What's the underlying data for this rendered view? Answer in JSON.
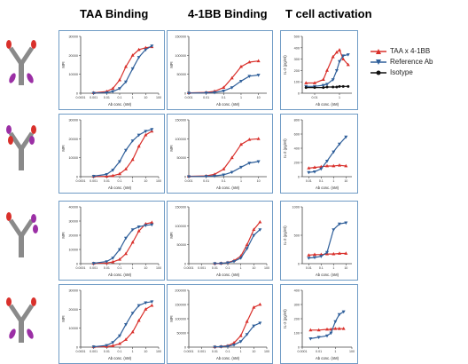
{
  "column_headers": [
    "TAA Binding",
    "4-1BB Binding",
    "T  cell activation"
  ],
  "legend": [
    {
      "label": "TAA x 4-1BB",
      "color": "#d9302b",
      "marker": "triangle-up"
    },
    {
      "label": "Reference Ab",
      "color": "#2f5f9a",
      "marker": "triangle-down"
    },
    {
      "label": "Isotype",
      "color": "#111111",
      "marker": "circle"
    }
  ],
  "colors": {
    "taa": "#d9302b",
    "ref": "#2f5f9a",
    "iso": "#111111",
    "panel_border": "#6f9bc5",
    "heavy_chain": "#8a8a8a",
    "taa_arm": "#d9302b",
    "bb_arm": "#9b2fa5"
  },
  "chart_data": [
    {
      "type": "line",
      "row": 1,
      "col": 1,
      "xlabel": "Ab conc. (nM)",
      "ylabel": "MFI",
      "xscale": "log",
      "xlim": [
        0.0001,
        100
      ],
      "xticks": [
        "0.0001",
        "0.001",
        "0.01",
        "0.1",
        "1",
        "10",
        "100"
      ],
      "ylim": [
        0,
        30000
      ],
      "yticks": [
        "0",
        "10000",
        "20000",
        "30000"
      ],
      "series": [
        {
          "key": "taa",
          "x": [
            0.001,
            0.01,
            0.03,
            0.1,
            0.3,
            1,
            3,
            10,
            30
          ],
          "y": [
            200,
            900,
            2500,
            7000,
            14000,
            20000,
            23000,
            24000,
            24500
          ]
        },
        {
          "key": "ref",
          "x": [
            0.001,
            0.01,
            0.03,
            0.1,
            0.3,
            1,
            3,
            10,
            30
          ],
          "y": [
            100,
            300,
            900,
            2500,
            6000,
            13000,
            19000,
            23000,
            25000
          ]
        }
      ]
    },
    {
      "type": "line",
      "row": 1,
      "col": 2,
      "xlabel": "Ab conc. (nM)",
      "ylabel": "MFI",
      "xscale": "log",
      "xlim": [
        0.001,
        30
      ],
      "xticks": [
        "0.001",
        "0.01",
        "0.1",
        "1",
        "10"
      ],
      "ylim": [
        0,
        150000
      ],
      "yticks": [
        "0",
        "50000",
        "100000",
        "150000"
      ],
      "series": [
        {
          "key": "taa",
          "x": [
            0.001,
            0.01,
            0.03,
            0.1,
            0.3,
            1,
            3,
            10
          ],
          "y": [
            1000,
            2000,
            5000,
            15000,
            40000,
            70000,
            82000,
            85000
          ]
        },
        {
          "key": "ref",
          "x": [
            0.001,
            0.01,
            0.03,
            0.1,
            0.3,
            1,
            3,
            10
          ],
          "y": [
            500,
            1000,
            2000,
            6000,
            15000,
            32000,
            45000,
            48000
          ]
        }
      ]
    },
    {
      "type": "line",
      "row": 1,
      "col": 3,
      "xlabel": "Ab conc. (nM)",
      "ylabel": "IL-2 (pg/ml)",
      "xscale": "log",
      "xlim": [
        0.001,
        10
      ],
      "xticks": [
        "0.01",
        "1"
      ],
      "ylim": [
        0,
        500
      ],
      "yticks": [
        "0",
        "100",
        "200",
        "300",
        "400",
        "500"
      ],
      "series": [
        {
          "key": "taa",
          "x": [
            0.002,
            0.01,
            0.05,
            0.1,
            0.3,
            0.6,
            1,
            2,
            5
          ],
          "y": [
            90,
            90,
            120,
            200,
            320,
            360,
            380,
            300,
            250
          ]
        },
        {
          "key": "ref",
          "x": [
            0.002,
            0.01,
            0.05,
            0.1,
            0.3,
            0.6,
            1,
            2,
            5
          ],
          "y": [
            60,
            60,
            70,
            80,
            120,
            200,
            280,
            330,
            340
          ]
        },
        {
          "key": "iso",
          "x": [
            0.002,
            0.01,
            0.05,
            0.1,
            0.3,
            0.6,
            1,
            2,
            5
          ],
          "y": [
            50,
            50,
            50,
            55,
            55,
            55,
            60,
            60,
            60
          ]
        }
      ]
    },
    {
      "type": "line",
      "row": 2,
      "col": 1,
      "xlabel": "Ab conc. (nM)",
      "ylabel": "MFI",
      "xscale": "log",
      "xlim": [
        0.0001,
        100
      ],
      "xticks": [
        "0.0001",
        "0.001",
        "0.01",
        "0.1",
        "1",
        "10",
        "100"
      ],
      "ylim": [
        0,
        30000
      ],
      "yticks": [
        "0",
        "10000",
        "20000",
        "30000"
      ],
      "series": [
        {
          "key": "taa",
          "x": [
            0.001,
            0.01,
            0.03,
            0.1,
            0.3,
            1,
            3,
            10,
            30
          ],
          "y": [
            100,
            200,
            500,
            1500,
            4000,
            9000,
            16000,
            22000,
            24000
          ]
        },
        {
          "key": "ref",
          "x": [
            0.001,
            0.01,
            0.03,
            0.1,
            0.3,
            1,
            3,
            10,
            30
          ],
          "y": [
            300,
            1200,
            3500,
            8000,
            14000,
            19000,
            22000,
            24000,
            25000
          ]
        }
      ]
    },
    {
      "type": "line",
      "row": 2,
      "col": 2,
      "xlabel": "Ab conc. (nM)",
      "ylabel": "MFI",
      "xscale": "log",
      "xlim": [
        0.001,
        30
      ],
      "xticks": [
        "0.001",
        "0.01",
        "0.1",
        "1",
        "10"
      ],
      "ylim": [
        0,
        150000
      ],
      "yticks": [
        "0",
        "50000",
        "100000",
        "150000"
      ],
      "series": [
        {
          "key": "taa",
          "x": [
            0.001,
            0.01,
            0.03,
            0.1,
            0.3,
            1,
            3,
            10
          ],
          "y": [
            1000,
            2000,
            6000,
            20000,
            50000,
            85000,
            98000,
            100000
          ]
        },
        {
          "key": "ref",
          "x": [
            0.001,
            0.01,
            0.03,
            0.1,
            0.3,
            1,
            3,
            10
          ],
          "y": [
            500,
            1000,
            2000,
            5000,
            12000,
            25000,
            36000,
            40000
          ]
        }
      ]
    },
    {
      "type": "line",
      "row": 2,
      "col": 3,
      "xlabel": "Ab conc. (nM)",
      "ylabel": "IL-2 (pg/ml)",
      "xscale": "log",
      "xlim": [
        0.003,
        30
      ],
      "xticks": [
        "0.01",
        "0.1",
        "1",
        "10"
      ],
      "ylim": [
        0,
        800
      ],
      "yticks": [
        "0",
        "200",
        "400",
        "600",
        "800"
      ],
      "series": [
        {
          "key": "taa",
          "x": [
            0.01,
            0.03,
            0.1,
            0.3,
            1,
            3,
            10
          ],
          "y": [
            120,
            130,
            140,
            150,
            150,
            160,
            150
          ]
        },
        {
          "key": "ref",
          "x": [
            0.01,
            0.03,
            0.1,
            0.3,
            1,
            3,
            10
          ],
          "y": [
            60,
            70,
            110,
            220,
            350,
            460,
            560
          ]
        }
      ]
    },
    {
      "type": "line",
      "row": 3,
      "col": 1,
      "xlabel": "Ab conc. (nM)",
      "ylabel": "MFI",
      "xscale": "log",
      "xlim": [
        0.0001,
        100
      ],
      "xticks": [
        "0.0001",
        "0.001",
        "0.01",
        "0.1",
        "1",
        "10",
        "100"
      ],
      "ylim": [
        0,
        40000
      ],
      "yticks": [
        "0",
        "10000",
        "20000",
        "30000",
        "40000"
      ],
      "series": [
        {
          "key": "taa",
          "x": [
            0.001,
            0.01,
            0.03,
            0.1,
            0.3,
            1,
            3,
            10,
            30
          ],
          "y": [
            200,
            500,
            1200,
            3000,
            7000,
            15000,
            23000,
            28000,
            29000
          ]
        },
        {
          "key": "ref",
          "x": [
            0.001,
            0.01,
            0.03,
            0.1,
            0.3,
            1,
            3,
            10,
            30
          ],
          "y": [
            300,
            1500,
            4000,
            10000,
            18000,
            24000,
            26000,
            27000,
            27500
          ]
        }
      ]
    },
    {
      "type": "line",
      "row": 3,
      "col": 2,
      "xlabel": "Ab conc. (nM)",
      "ylabel": "MFI",
      "xscale": "log",
      "xlim": [
        0.0001,
        100
      ],
      "xticks": [
        "0.0001",
        "0.001",
        "0.01",
        "0.1",
        "1",
        "10",
        "100"
      ],
      "ylim": [
        0,
        150000
      ],
      "yticks": [
        "0",
        "50000",
        "100000",
        "150000"
      ],
      "series": [
        {
          "key": "taa",
          "x": [
            0.01,
            0.03,
            0.1,
            0.3,
            1,
            3,
            10,
            30
          ],
          "y": [
            500,
            1000,
            3000,
            8000,
            20000,
            50000,
            90000,
            110000
          ]
        },
        {
          "key": "ref",
          "x": [
            0.01,
            0.03,
            0.1,
            0.3,
            1,
            3,
            10,
            30
          ],
          "y": [
            400,
            800,
            2500,
            6000,
            15000,
            40000,
            75000,
            90000
          ]
        }
      ]
    },
    {
      "type": "line",
      "row": 3,
      "col": 3,
      "xlabel": "Ab conc. (nM)",
      "ylabel": "IL-2 (pg/ml)",
      "xscale": "log",
      "xlim": [
        0.003,
        30
      ],
      "xticks": [
        "0.01",
        "0.1",
        "1",
        "10"
      ],
      "ylim": [
        0,
        1000
      ],
      "yticks": [
        "0",
        "500",
        "1000"
      ],
      "series": [
        {
          "key": "taa",
          "x": [
            0.01,
            0.03,
            0.1,
            0.3,
            1,
            3,
            10
          ],
          "y": [
            150,
            160,
            160,
            170,
            170,
            180,
            180
          ]
        },
        {
          "key": "ref",
          "x": [
            0.01,
            0.03,
            0.1,
            0.3,
            1,
            3,
            10
          ],
          "y": [
            100,
            110,
            130,
            200,
            600,
            700,
            720
          ]
        }
      ]
    },
    {
      "type": "line",
      "row": 4,
      "col": 1,
      "xlabel": "Ab conc. (nM)",
      "ylabel": "MFI",
      "xscale": "log",
      "xlim": [
        0.0001,
        100
      ],
      "xticks": [
        "0.0001",
        "0.001",
        "0.01",
        "0.1",
        "1",
        "10",
        "100"
      ],
      "ylim": [
        0,
        30000
      ],
      "yticks": [
        "0",
        "10000",
        "20000",
        "30000"
      ],
      "series": [
        {
          "key": "taa",
          "x": [
            0.001,
            0.01,
            0.03,
            0.1,
            0.3,
            1,
            3,
            10,
            30
          ],
          "y": [
            100,
            300,
            700,
            1800,
            4000,
            8000,
            14000,
            20000,
            22000
          ]
        },
        {
          "key": "ref",
          "x": [
            0.001,
            0.01,
            0.03,
            0.1,
            0.3,
            1,
            3,
            10,
            30
          ],
          "y": [
            200,
            900,
            2500,
            6000,
            12000,
            18000,
            22000,
            23500,
            24000
          ]
        }
      ]
    },
    {
      "type": "line",
      "row": 4,
      "col": 2,
      "xlabel": "Ab conc. (nM)",
      "ylabel": "MFI",
      "xscale": "log",
      "xlim": [
        0.0001,
        100
      ],
      "xticks": [
        "0.0001",
        "0.001",
        "0.01",
        "0.1",
        "1",
        "10",
        "100"
      ],
      "ylim": [
        0,
        200000
      ],
      "yticks": [
        "0",
        "50000",
        "100000",
        "150000",
        "200000"
      ],
      "series": [
        {
          "key": "taa",
          "x": [
            0.01,
            0.03,
            0.1,
            0.3,
            1,
            3,
            10,
            30
          ],
          "y": [
            1000,
            2000,
            5000,
            15000,
            40000,
            90000,
            140000,
            150000
          ]
        },
        {
          "key": "ref",
          "x": [
            0.01,
            0.03,
            0.1,
            0.3,
            1,
            3,
            10,
            30
          ],
          "y": [
            800,
            1500,
            3000,
            8000,
            20000,
            45000,
            75000,
            85000
          ]
        }
      ]
    },
    {
      "type": "line",
      "row": 4,
      "col": 3,
      "xlabel": "Ab conc. (nM)",
      "ylabel": "IL-2 (pg/ml)",
      "xscale": "log",
      "xlim": [
        0.0001,
        100
      ],
      "xticks": [
        "0.0001",
        "0.01",
        "1",
        "100"
      ],
      "ylim": [
        0,
        400
      ],
      "yticks": [
        "0",
        "100",
        "200",
        "300",
        "400"
      ],
      "series": [
        {
          "key": "taa",
          "x": [
            0.001,
            0.01,
            0.1,
            0.3,
            1,
            3,
            10
          ],
          "y": [
            120,
            120,
            125,
            125,
            130,
            130,
            130
          ]
        },
        {
          "key": "ref",
          "x": [
            0.001,
            0.01,
            0.1,
            0.3,
            1,
            3,
            10
          ],
          "y": [
            60,
            70,
            80,
            100,
            180,
            230,
            250
          ]
        }
      ]
    }
  ]
}
